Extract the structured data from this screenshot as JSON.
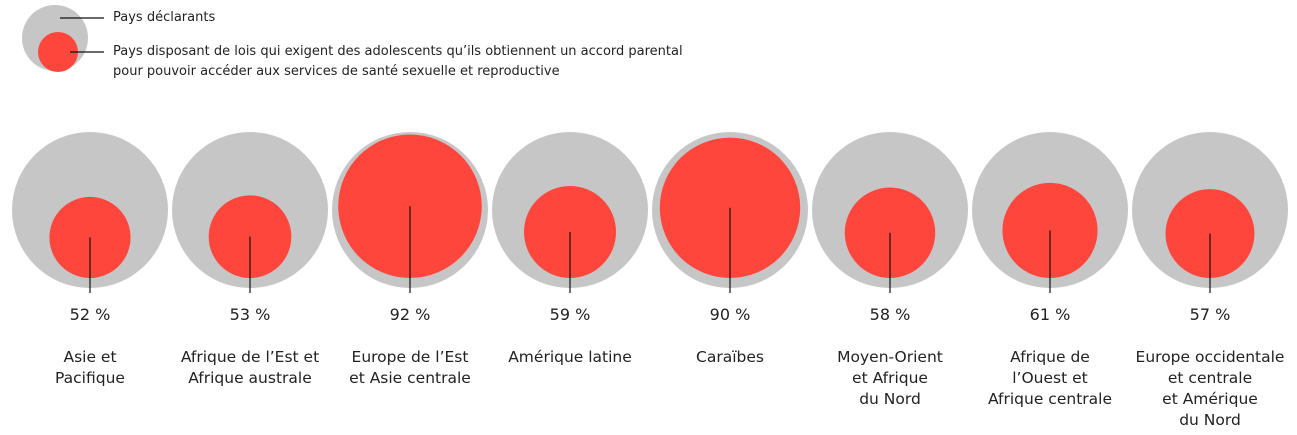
{
  "chart_data": {
    "type": "bubble",
    "legend": [
      "Pays déclarants",
      "Pays disposant de lois qui exigent des adolescents qu’ils obtiennent un accord parental\npour pouvoir accéder aux services de santé sexuelle et reproductive"
    ],
    "categories": [
      "Asie et\nPacifique",
      "Afrique de l’Est et\nAfrique australe",
      "Europe de l’Est\net Asie centrale",
      "Amérique latine",
      "Caraïbes",
      "Moyen-Orient\net Afrique\ndu Nord",
      "Afrique de\nl’Ouest et\nAfrique centrale",
      "Europe occidentale\net centrale\net Amérique\ndu Nord"
    ],
    "values": [
      52,
      53,
      92,
      59,
      90,
      58,
      61,
      57
    ],
    "value_labels": [
      "52 %",
      "53 %",
      "92 %",
      "59 %",
      "90 %",
      "58 %",
      "61 %",
      "57 %"
    ],
    "color": "#ff463c",
    "outer_color": "#c6c6c6"
  }
}
